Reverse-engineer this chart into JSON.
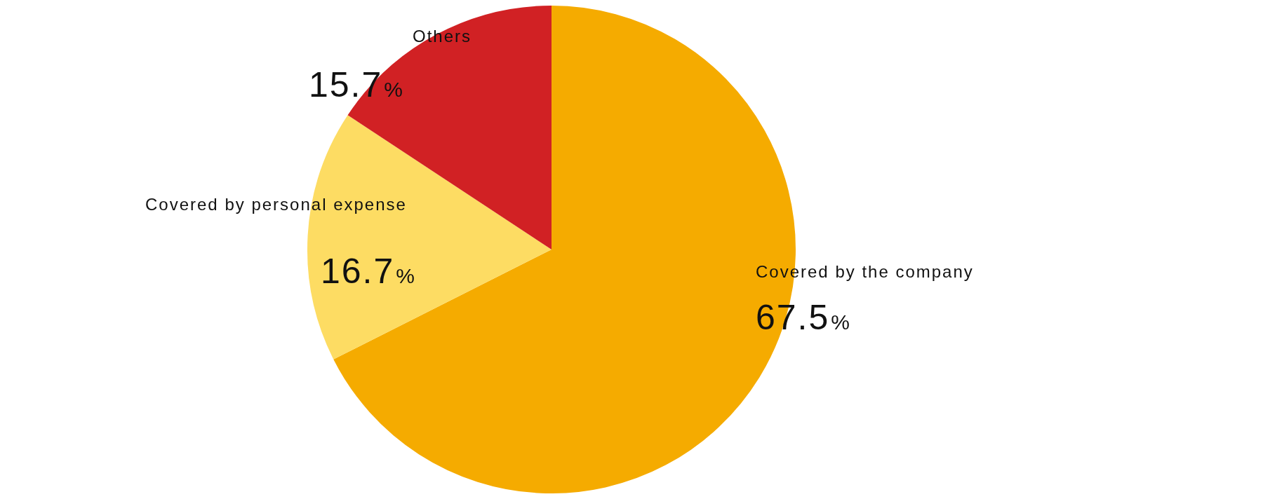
{
  "chart_data": {
    "type": "pie",
    "categories": [
      "Covered by the company",
      "Covered by personal expense",
      "Others"
    ],
    "values": [
      67.5,
      16.7,
      15.7
    ],
    "colors": [
      "#f5ab00",
      "#fddc63",
      "#d12124"
    ],
    "value_labels": [
      "67.5%",
      "16.7%",
      "15.7%"
    ],
    "legend": false
  }
}
